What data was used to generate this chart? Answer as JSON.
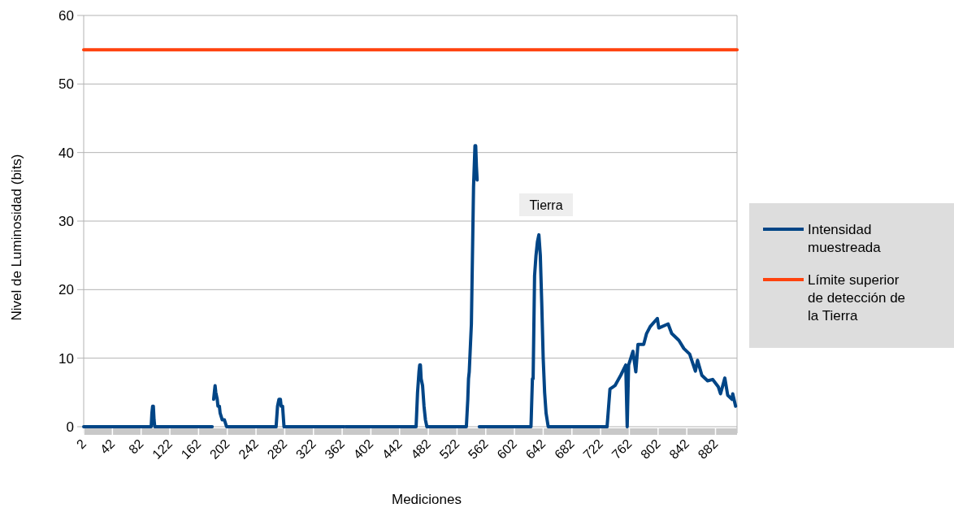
{
  "chart_data": {
    "type": "line",
    "xlabel": "Mediciones",
    "ylabel": "Nivel de Luminosidad (bits)",
    "xlim": [
      2,
      912
    ],
    "xticks": [
      2,
      42,
      82,
      122,
      162,
      202,
      242,
      282,
      322,
      362,
      402,
      442,
      482,
      522,
      562,
      602,
      642,
      682,
      722,
      762,
      802,
      842,
      882
    ],
    "ylim": [
      0,
      60
    ],
    "yticks": [
      0,
      10,
      20,
      30,
      40,
      50,
      60
    ],
    "grid": "y",
    "legend": "right",
    "line_style": "solid",
    "marker": "none",
    "annotations": [
      "Tierra"
    ],
    "series": [
      {
        "name": "Intensidad muestreada",
        "color": "#004586",
        "x": [
          2,
          96,
          97,
          98,
          99,
          100,
          101,
          181,
          182,
          183,
          184,
          185,
          186,
          188,
          189,
          191,
          192,
          195,
          198,
          201,
          270,
          272,
          274,
          276,
          277,
          279,
          281,
          365,
          366,
          367,
          465,
          467,
          469,
          470,
          471,
          472,
          474,
          476,
          478,
          480,
          535,
          537,
          538,
          539,
          542,
          545,
          547,
          548,
          549,
          550,
          551,
          553,
          625,
          627,
          628,
          630,
          632,
          634,
          636,
          638,
          640,
          642,
          644,
          646,
          649,
          731,
          735,
          742,
          750,
          757,
          759,
          761,
          767,
          771,
          774,
          782,
          786,
          791,
          801,
          803,
          816,
          821,
          831,
          838,
          846,
          854,
          857,
          863,
          871,
          878,
          886,
          889,
          895,
          899,
          905,
          906,
          910
        ],
        "values": [
          0,
          0,
          2,
          3,
          3,
          1,
          0,
          0,
          null,
          4,
          5,
          6,
          5,
          4,
          3,
          3,
          2,
          1,
          1,
          0,
          0,
          3,
          4,
          4,
          3,
          3,
          0,
          0,
          null,
          0,
          0,
          5,
          8,
          9,
          9,
          7,
          6,
          3,
          1,
          0,
          0,
          4,
          7,
          8,
          15,
          35,
          41,
          41,
          38,
          36,
          null,
          0,
          0,
          7,
          7,
          22,
          25,
          27,
          28,
          25,
          18,
          10,
          5,
          2,
          0,
          0,
          5.5,
          6,
          7.5,
          9,
          0,
          9,
          11,
          8,
          12,
          12,
          13.6,
          14.6,
          15.8,
          14.4,
          15,
          13.6,
          12.6,
          11.4,
          10.6,
          8.1,
          9.7,
          7.5,
          6.7,
          6.9,
          5.8,
          4.8,
          7.1,
          4.6,
          4,
          4.8,
          3
        ]
      },
      {
        "name": "Límite superior de detección de la Tierra",
        "color": "#ff420e",
        "x": [
          2,
          912
        ],
        "values": [
          55,
          55
        ]
      }
    ]
  }
}
